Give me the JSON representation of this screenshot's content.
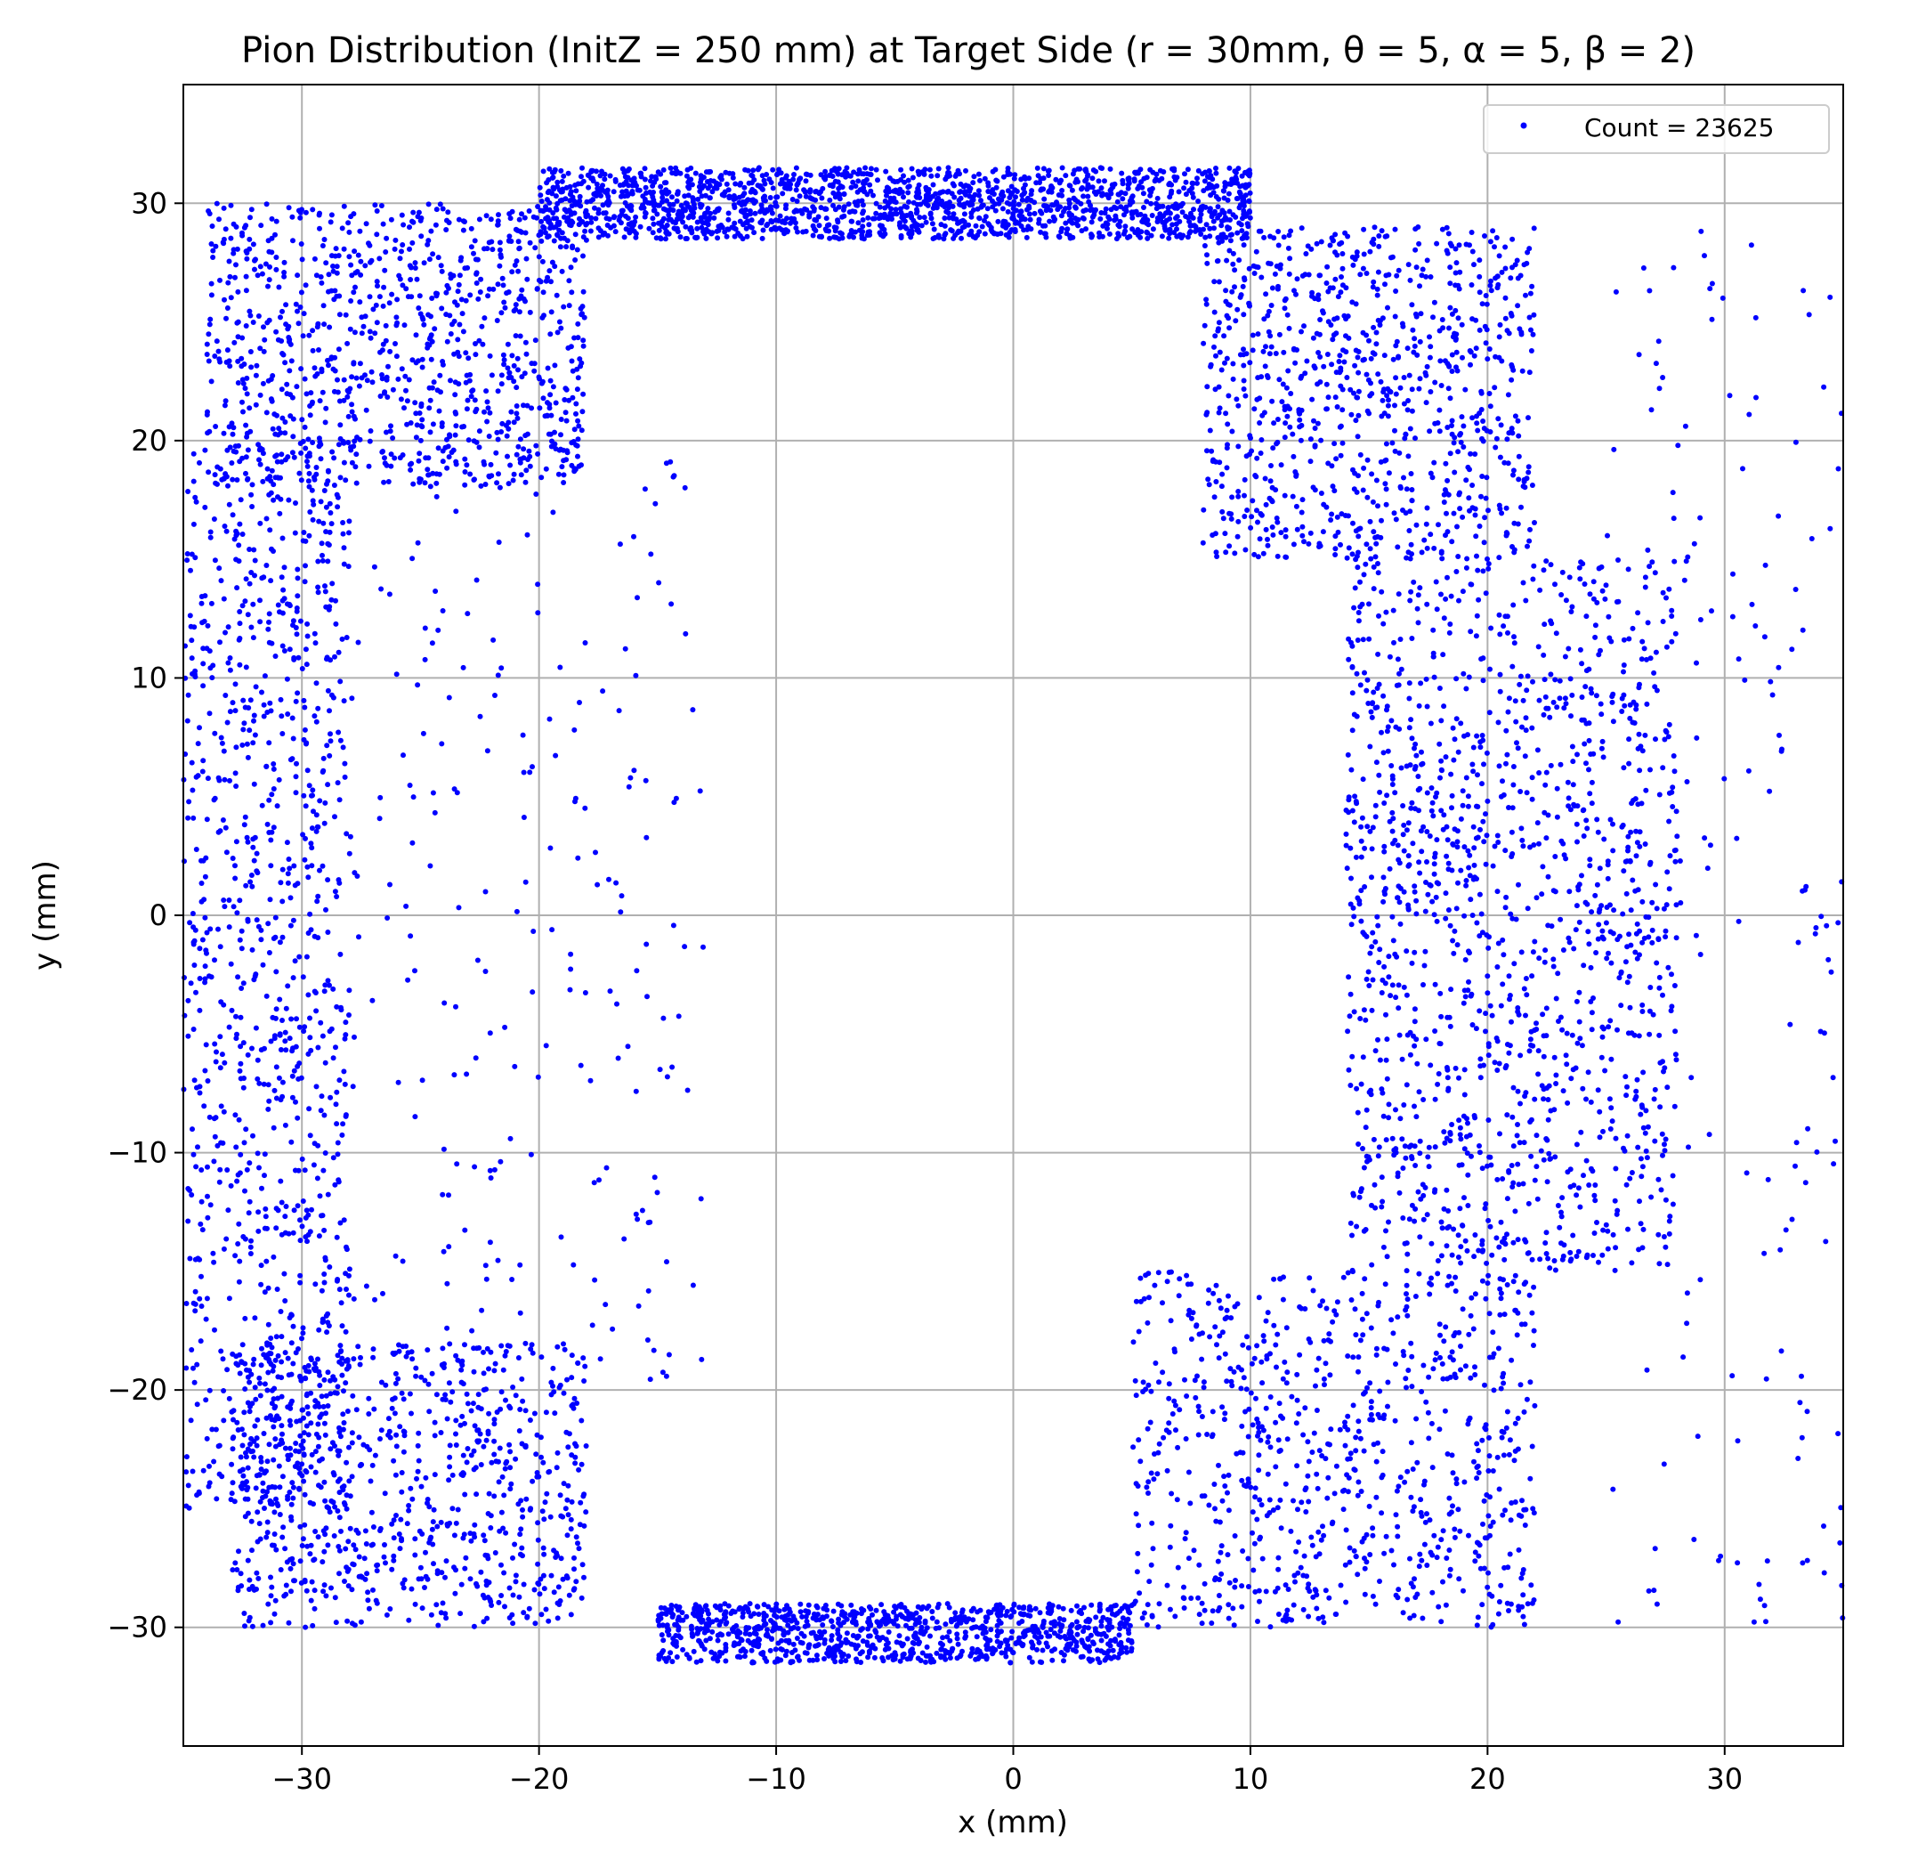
{
  "chart_data": {
    "type": "scatter",
    "title": "Pion Distribution (InitZ = 250 mm) at Target Side (r = 30mm, θ = 5, α = 5, β = 2)",
    "xlabel": "x (mm)",
    "ylabel": "y (mm)",
    "xlim": [
      -35,
      35
    ],
    "ylim": [
      -35,
      35
    ],
    "xticks": [
      -30,
      -20,
      -10,
      0,
      10,
      20,
      30
    ],
    "yticks": [
      -30,
      -20,
      -10,
      0,
      10,
      20,
      30
    ],
    "xtick_labels": [
      "−30",
      "−20",
      "−10",
      "0",
      "10",
      "20",
      "30"
    ],
    "ytick_labels": [
      "−30",
      "−20",
      "−10",
      "0",
      "10",
      "20",
      "30"
    ],
    "grid": true,
    "legend_position": "top-right",
    "series": [
      {
        "name": "Count = 23625",
        "color": "#0000ff",
        "marker": "dot",
        "distribution": [
          {
            "region": "top-band",
            "x_range": [
              -20,
              10
            ],
            "y_range": [
              28.5,
              31.5
            ],
            "weight": 0.19
          },
          {
            "region": "bottom-band",
            "x_range": [
              -15,
              5
            ],
            "y_range": [
              -31.5,
              -29
            ],
            "weight": 0.11
          },
          {
            "region": "upper-left-arc",
            "x_range": [
              -34,
              -18
            ],
            "y_range": [
              18,
              30
            ],
            "weight": 0.11
          },
          {
            "region": "left-edge",
            "x_range": [
              -35,
              -28
            ],
            "y_range": [
              -25,
              20
            ],
            "weight": 0.11
          },
          {
            "region": "lower-left-arc",
            "x_range": [
              -33,
              -18
            ],
            "y_range": [
              -30,
              -18
            ],
            "weight": 0.09
          },
          {
            "region": "right-upper-arc",
            "x_range": [
              8,
              22
            ],
            "y_range": [
              15,
              29
            ],
            "weight": 0.1
          },
          {
            "region": "right-side",
            "x_range": [
              14,
              28
            ],
            "y_range": [
              -15,
              15
            ],
            "weight": 0.15
          },
          {
            "region": "right-lower-arc",
            "x_range": [
              5,
              22
            ],
            "y_range": [
              -30,
              -15
            ],
            "weight": 0.09
          },
          {
            "region": "sparse-interior-left",
            "x_range": [
              -30,
              -13
            ],
            "y_range": [
              -20,
              20
            ],
            "weight": 0.03
          },
          {
            "region": "sparse-outer-right",
            "x_range": [
              25,
              35
            ],
            "y_range": [
              -30,
              30
            ],
            "weight": 0.02
          }
        ]
      }
    ]
  }
}
